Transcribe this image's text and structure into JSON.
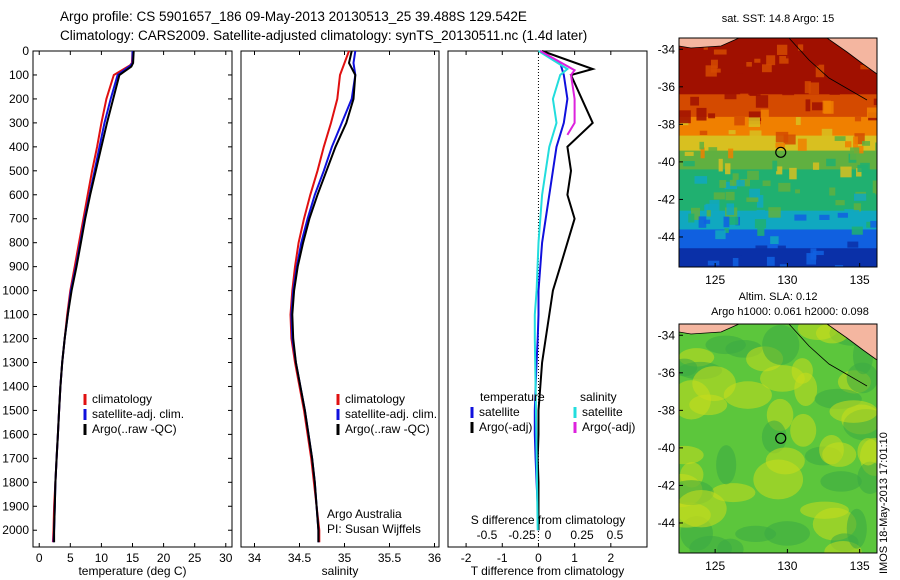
{
  "header": {
    "line1": "Argo profile: CS 5901657_186 09-May-2013 20130513_25 39.488S 129.542E",
    "line2": "Climatology: CARS2009. Satellite-adjusted climatology: synTS_20130511.nc (1.4d later)"
  },
  "stamp": "IMOS 18-May-2013 17:01:10",
  "colors": {
    "climatology": "#e01010",
    "satellite": "#1010dd",
    "argo": "#000000",
    "satellite_s": "#22dddd",
    "argo_adj_s": "#dd22dd"
  },
  "chart_data": [
    {
      "type": "line",
      "id": "temperature",
      "xlabel": "temperature (deg C)",
      "ylabel": "",
      "xlim": [
        -1,
        31
      ],
      "ylim": [
        2070,
        0
      ],
      "y_reversed": true,
      "xticks": [
        0,
        5,
        10,
        15,
        20,
        25,
        30
      ],
      "yticks": [
        0,
        100,
        200,
        300,
        400,
        500,
        600,
        700,
        800,
        900,
        1000,
        1100,
        1200,
        1300,
        1400,
        1500,
        1600,
        1700,
        1800,
        1900,
        2000
      ],
      "legend": [
        "climatology",
        "satellite-adj. clim.",
        "Argo(..raw -QC)"
      ],
      "legend_location": "lower-center",
      "series": [
        {
          "name": "climatology",
          "color": "#e01010",
          "points": [
            [
              15.0,
              0
            ],
            [
              14.9,
              50
            ],
            [
              14.6,
              60
            ],
            [
              12.0,
              100
            ],
            [
              10.8,
              200
            ],
            [
              10.0,
              300
            ],
            [
              9.3,
              400
            ],
            [
              8.5,
              500
            ],
            [
              7.8,
              600
            ],
            [
              7.1,
              700
            ],
            [
              6.4,
              800
            ],
            [
              5.7,
              900
            ],
            [
              5.0,
              1000
            ],
            [
              4.5,
              1100
            ],
            [
              4.1,
              1200
            ],
            [
              3.7,
              1300
            ],
            [
              3.4,
              1400
            ],
            [
              3.2,
              1500
            ],
            [
              3.0,
              1600
            ],
            [
              2.8,
              1700
            ],
            [
              2.6,
              1800
            ],
            [
              2.4,
              1900
            ],
            [
              2.3,
              2000
            ],
            [
              2.2,
              2050
            ]
          ]
        },
        {
          "name": "satellite-adj. clim.",
          "color": "#1010dd",
          "points": [
            [
              15.0,
              0
            ],
            [
              15.0,
              50
            ],
            [
              14.7,
              60
            ],
            [
              12.6,
              100
            ],
            [
              11.5,
              200
            ],
            [
              10.5,
              300
            ],
            [
              9.7,
              400
            ],
            [
              8.9,
              500
            ],
            [
              8.1,
              600
            ],
            [
              7.3,
              700
            ],
            [
              6.6,
              800
            ],
            [
              5.9,
              900
            ],
            [
              5.1,
              1000
            ],
            [
              4.6,
              1100
            ],
            [
              4.1,
              1200
            ],
            [
              3.7,
              1300
            ],
            [
              3.4,
              1400
            ],
            [
              3.2,
              1500
            ],
            [
              3.0,
              1600
            ],
            [
              2.8,
              1700
            ],
            [
              2.6,
              1800
            ],
            [
              2.5,
              1900
            ],
            [
              2.4,
              2000
            ],
            [
              2.3,
              2050
            ]
          ]
        },
        {
          "name": "Argo(..raw -QC)",
          "color": "#000000",
          "points": [
            [
              15.2,
              0
            ],
            [
              15.1,
              50
            ],
            [
              14.8,
              65
            ],
            [
              12.9,
              100
            ],
            [
              11.9,
              200
            ],
            [
              10.9,
              300
            ],
            [
              10.0,
              400
            ],
            [
              9.1,
              500
            ],
            [
              8.2,
              600
            ],
            [
              7.4,
              700
            ],
            [
              6.7,
              800
            ],
            [
              6.0,
              900
            ],
            [
              5.2,
              1000
            ],
            [
              4.6,
              1100
            ],
            [
              4.1,
              1200
            ],
            [
              3.7,
              1300
            ],
            [
              3.4,
              1400
            ],
            [
              3.2,
              1500
            ],
            [
              3.0,
              1600
            ],
            [
              2.8,
              1700
            ],
            [
              2.6,
              1800
            ],
            [
              2.5,
              1900
            ],
            [
              2.4,
              2000
            ],
            [
              2.4,
              2050
            ]
          ]
        }
      ]
    },
    {
      "type": "line",
      "id": "salinity",
      "xlabel": "salinity",
      "xlim": [
        33.85,
        36.05
      ],
      "ylim": [
        2070,
        0
      ],
      "y_reversed": true,
      "xticks": [
        34,
        34.5,
        35,
        35.5,
        36
      ],
      "legend": [
        "climatology",
        "satellite-adj. clim.",
        "Argo(..raw -QC)"
      ],
      "legend_location": "lower-right",
      "annotations": [
        "Argo Australia",
        "PI: Susan Wijffels"
      ],
      "series": [
        {
          "name": "climatology",
          "color": "#e01010",
          "points": [
            [
              35.05,
              0
            ],
            [
              35.0,
              50
            ],
            [
              34.95,
              100
            ],
            [
              34.92,
              200
            ],
            [
              34.85,
              300
            ],
            [
              34.77,
              400
            ],
            [
              34.7,
              500
            ],
            [
              34.62,
              600
            ],
            [
              34.55,
              700
            ],
            [
              34.49,
              800
            ],
            [
              34.45,
              900
            ],
            [
              34.42,
              1000
            ],
            [
              34.4,
              1100
            ],
            [
              34.41,
              1200
            ],
            [
              34.45,
              1300
            ],
            [
              34.5,
              1400
            ],
            [
              34.55,
              1500
            ],
            [
              34.59,
              1600
            ],
            [
              34.63,
              1700
            ],
            [
              34.66,
              1800
            ],
            [
              34.69,
              1900
            ],
            [
              34.72,
              2000
            ],
            [
              34.72,
              2050
            ]
          ]
        },
        {
          "name": "satellite-adj. clim.",
          "color": "#1010dd",
          "points": [
            [
              35.12,
              0
            ],
            [
              35.1,
              50
            ],
            [
              35.12,
              100
            ],
            [
              35.08,
              200
            ],
            [
              34.97,
              300
            ],
            [
              34.86,
              400
            ],
            [
              34.77,
              500
            ],
            [
              34.67,
              600
            ],
            [
              34.59,
              700
            ],
            [
              34.52,
              800
            ],
            [
              34.47,
              900
            ],
            [
              34.43,
              1000
            ],
            [
              34.41,
              1100
            ],
            [
              34.42,
              1200
            ],
            [
              34.46,
              1300
            ],
            [
              34.51,
              1400
            ],
            [
              34.56,
              1500
            ],
            [
              34.6,
              1600
            ],
            [
              34.64,
              1700
            ],
            [
              34.67,
              1800
            ],
            [
              34.69,
              1900
            ],
            [
              34.71,
              2000
            ],
            [
              34.71,
              2050
            ]
          ]
        },
        {
          "name": "Argo(..raw -QC)",
          "color": "#000000",
          "points": [
            [
              35.08,
              0
            ],
            [
              35.05,
              50
            ],
            [
              35.12,
              100
            ],
            [
              35.1,
              200
            ],
            [
              35.02,
              300
            ],
            [
              34.9,
              400
            ],
            [
              34.8,
              500
            ],
            [
              34.7,
              600
            ],
            [
              34.61,
              700
            ],
            [
              34.54,
              800
            ],
            [
              34.48,
              900
            ],
            [
              34.44,
              1000
            ],
            [
              34.42,
              1100
            ],
            [
              34.43,
              1200
            ],
            [
              34.46,
              1300
            ],
            [
              34.51,
              1400
            ],
            [
              34.56,
              1500
            ],
            [
              34.6,
              1600
            ],
            [
              34.64,
              1700
            ],
            [
              34.67,
              1800
            ],
            [
              34.69,
              1900
            ],
            [
              34.71,
              2000
            ],
            [
              34.71,
              2050
            ]
          ]
        }
      ]
    },
    {
      "type": "line",
      "id": "difference",
      "xlabel": "T difference from climatology",
      "x2label": "S difference from climatology",
      "xlim": [
        -2.5,
        3.0
      ],
      "ylim": [
        2070,
        0
      ],
      "y_reversed": true,
      "xticks": [
        -2,
        -1,
        0,
        1,
        2
      ],
      "x2ticks": [
        "-0.5",
        "-0.25",
        "0",
        "0.25",
        "0.5"
      ],
      "legend_headers": [
        "temperature",
        "salinity"
      ],
      "legend": [
        "satellite",
        "Argo(-adj)",
        "satellite",
        "Argo(-adj)"
      ],
      "legend_location": "lower-center",
      "series": [
        {
          "name": "satellite",
          "group": "temperature",
          "color": "#1010dd",
          "points": [
            [
              0.05,
              0
            ],
            [
              0.6,
              50
            ],
            [
              0.7,
              100
            ],
            [
              0.8,
              200
            ],
            [
              0.7,
              300
            ],
            [
              0.5,
              400
            ],
            [
              0.4,
              500
            ],
            [
              0.3,
              600
            ],
            [
              0.2,
              700
            ],
            [
              0.1,
              800
            ],
            [
              0.05,
              900
            ],
            [
              0.0,
              1000
            ],
            [
              0.0,
              1100
            ],
            [
              -0.02,
              1200
            ],
            [
              -0.05,
              1300
            ],
            [
              -0.08,
              1400
            ],
            [
              -0.1,
              1500
            ],
            [
              -0.1,
              1600
            ],
            [
              -0.08,
              1700
            ],
            [
              -0.05,
              1800
            ],
            [
              -0.02,
              1900
            ],
            [
              0.0,
              2000
            ]
          ]
        },
        {
          "name": "Argo(-adj)",
          "group": "temperature",
          "color": "#000000",
          "points": [
            [
              0.1,
              0
            ],
            [
              1.5,
              75
            ],
            [
              0.9,
              100
            ],
            [
              1.5,
              300
            ],
            [
              0.8,
              400
            ],
            [
              0.9,
              500
            ],
            [
              0.8,
              600
            ],
            [
              1.0,
              700
            ],
            [
              0.8,
              800
            ],
            [
              0.6,
              900
            ],
            [
              0.4,
              1000
            ],
            [
              0.3,
              1100
            ],
            [
              0.2,
              1200
            ],
            [
              0.1,
              1300
            ],
            [
              0.05,
              1400
            ],
            [
              0.0,
              1500
            ],
            [
              0.0,
              1600
            ],
            [
              -0.02,
              1700
            ],
            [
              0.0,
              1800
            ],
            [
              0.0,
              1900
            ],
            [
              0.0,
              2000
            ]
          ]
        },
        {
          "name": "satellite",
          "group": "salinity",
          "color": "#22dddd",
          "points": [
            [
              0.0,
              0
            ],
            [
              0.8,
              75
            ],
            [
              0.6,
              100
            ],
            [
              0.4,
              200
            ],
            [
              0.5,
              300
            ],
            [
              0.3,
              400
            ],
            [
              0.2,
              500
            ],
            [
              0.1,
              600
            ],
            [
              0.0,
              800
            ],
            [
              -0.05,
              1000
            ],
            [
              -0.1,
              1100
            ],
            [
              -0.1,
              1200
            ],
            [
              -0.08,
              1400
            ],
            [
              -0.06,
              1600
            ],
            [
              -0.04,
              1800
            ],
            [
              -0.02,
              2000
            ]
          ]
        },
        {
          "name": "Argo(-adj)",
          "group": "salinity",
          "color": "#dd22dd",
          "points": [
            [
              0.05,
              0
            ],
            [
              1.0,
              80
            ],
            [
              0.9,
              100
            ],
            [
              1.0,
              200
            ],
            [
              1.0,
              300
            ],
            [
              0.8,
              350
            ]
          ]
        }
      ]
    },
    {
      "type": "heatmap",
      "id": "sst-map",
      "title": "sat. SST: 14.8  Argo: 15",
      "xlim": [
        122.5,
        136.2
      ],
      "ylim": [
        -45.6,
        -33.4
      ],
      "xticks": [
        125,
        130,
        135
      ],
      "yticks": [
        -34,
        -36,
        -38,
        -40,
        -42,
        -44
      ],
      "marker": {
        "lon": 129.54,
        "lat": -39.49
      },
      "bands": [
        {
          "lat_top": -33.4,
          "color": "#a01000"
        },
        {
          "lat_top": -36.4,
          "color": "#d44a00"
        },
        {
          "lat_top": -37.6,
          "color": "#f08000"
        },
        {
          "lat_top": -38.6,
          "color": "#d8c020"
        },
        {
          "lat_top": -39.4,
          "color": "#60b040"
        },
        {
          "lat_top": -40.4,
          "color": "#20b070"
        },
        {
          "lat_top": -42.6,
          "color": "#10a8c0"
        },
        {
          "lat_top": -43.6,
          "color": "#1060e0"
        },
        {
          "lat_top": -44.6,
          "color": "#0a30a8"
        }
      ]
    },
    {
      "type": "heatmap",
      "id": "sla-map",
      "title": "Altim. SLA: 0.12",
      "subtitle": "Argo h1000: 0.061 h2000: 0.098",
      "xlim": [
        122.5,
        136.2
      ],
      "ylim": [
        -45.6,
        -33.4
      ],
      "xticks": [
        125,
        130,
        135
      ],
      "yticks": [
        -34,
        -36,
        -38,
        -40,
        -42,
        -44
      ],
      "marker": {
        "lon": 129.54,
        "lat": -39.49
      },
      "bands": [
        {
          "lat_top": -33.4,
          "color": "#5cc63c"
        }
      ]
    }
  ]
}
